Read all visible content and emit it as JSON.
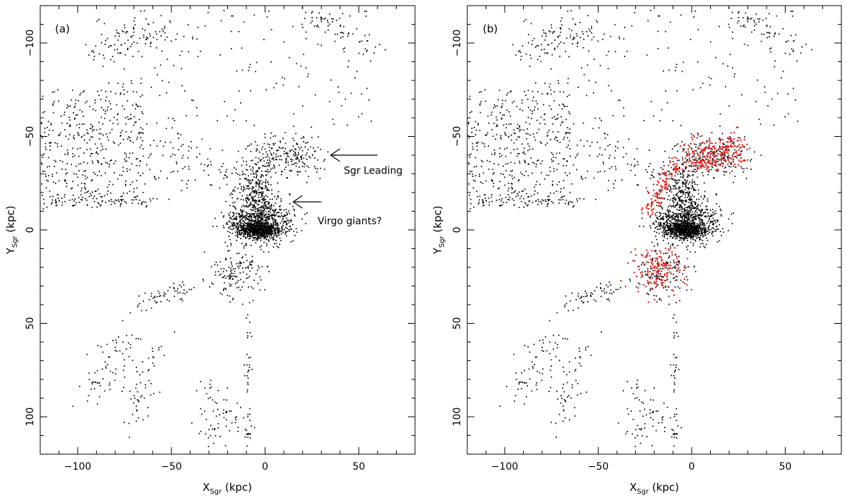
{
  "chart_data": [
    {
      "type": "scatter",
      "panel_label": "(a)",
      "xlabel": "X",
      "xlabel_sub": "Sgr",
      "xlabel_unit": " (kpc)",
      "ylabel": "Y",
      "ylabel_sub": "Sgr",
      "ylabel_unit": " (kpc)",
      "xlim": [
        -120,
        80
      ],
      "ylim": [
        -120,
        120
      ],
      "y_inverted": true,
      "xticks": [
        -100,
        -50,
        0,
        50
      ],
      "xtick_labels": [
        "−100",
        "−50",
        "0",
        "50"
      ],
      "yticks": [
        -100,
        -50,
        0,
        50,
        100
      ],
      "ytick_labels": [
        "−100",
        "−50",
        "0",
        "50",
        "100"
      ],
      "annotations": [
        {
          "text": "Sgr Leading",
          "arrow_from": [
            60,
            -40
          ],
          "arrow_to": [
            35,
            -40
          ],
          "text_at": [
            42,
            -30
          ]
        },
        {
          "text": "Virgo giants?",
          "arrow_from": [
            30,
            -15
          ],
          "arrow_to": [
            15,
            -15
          ],
          "text_at": [
            28,
            -3
          ]
        }
      ],
      "series": [
        {
          "color": "#000000"
        }
      ]
    },
    {
      "type": "scatter",
      "panel_label": "(b)",
      "xlabel": "X",
      "xlabel_sub": "Sgr",
      "xlabel_unit": " (kpc)",
      "ylabel": "Y",
      "ylabel_sub": "Sgr",
      "ylabel_unit": " (kpc)",
      "xlim": [
        -120,
        80
      ],
      "ylim": [
        -120,
        120
      ],
      "y_inverted": true,
      "xticks": [
        -100,
        -50,
        0,
        50
      ],
      "xtick_labels": [
        "−100",
        "−50",
        "0",
        "50"
      ],
      "yticks": [
        -100,
        -50,
        0,
        50,
        100
      ],
      "ytick_labels": [
        "−100",
        "−50",
        "0",
        "50",
        "100"
      ],
      "annotations": [],
      "series": [
        {
          "color": "#000000"
        },
        {
          "color": "#e0201b"
        }
      ]
    }
  ]
}
